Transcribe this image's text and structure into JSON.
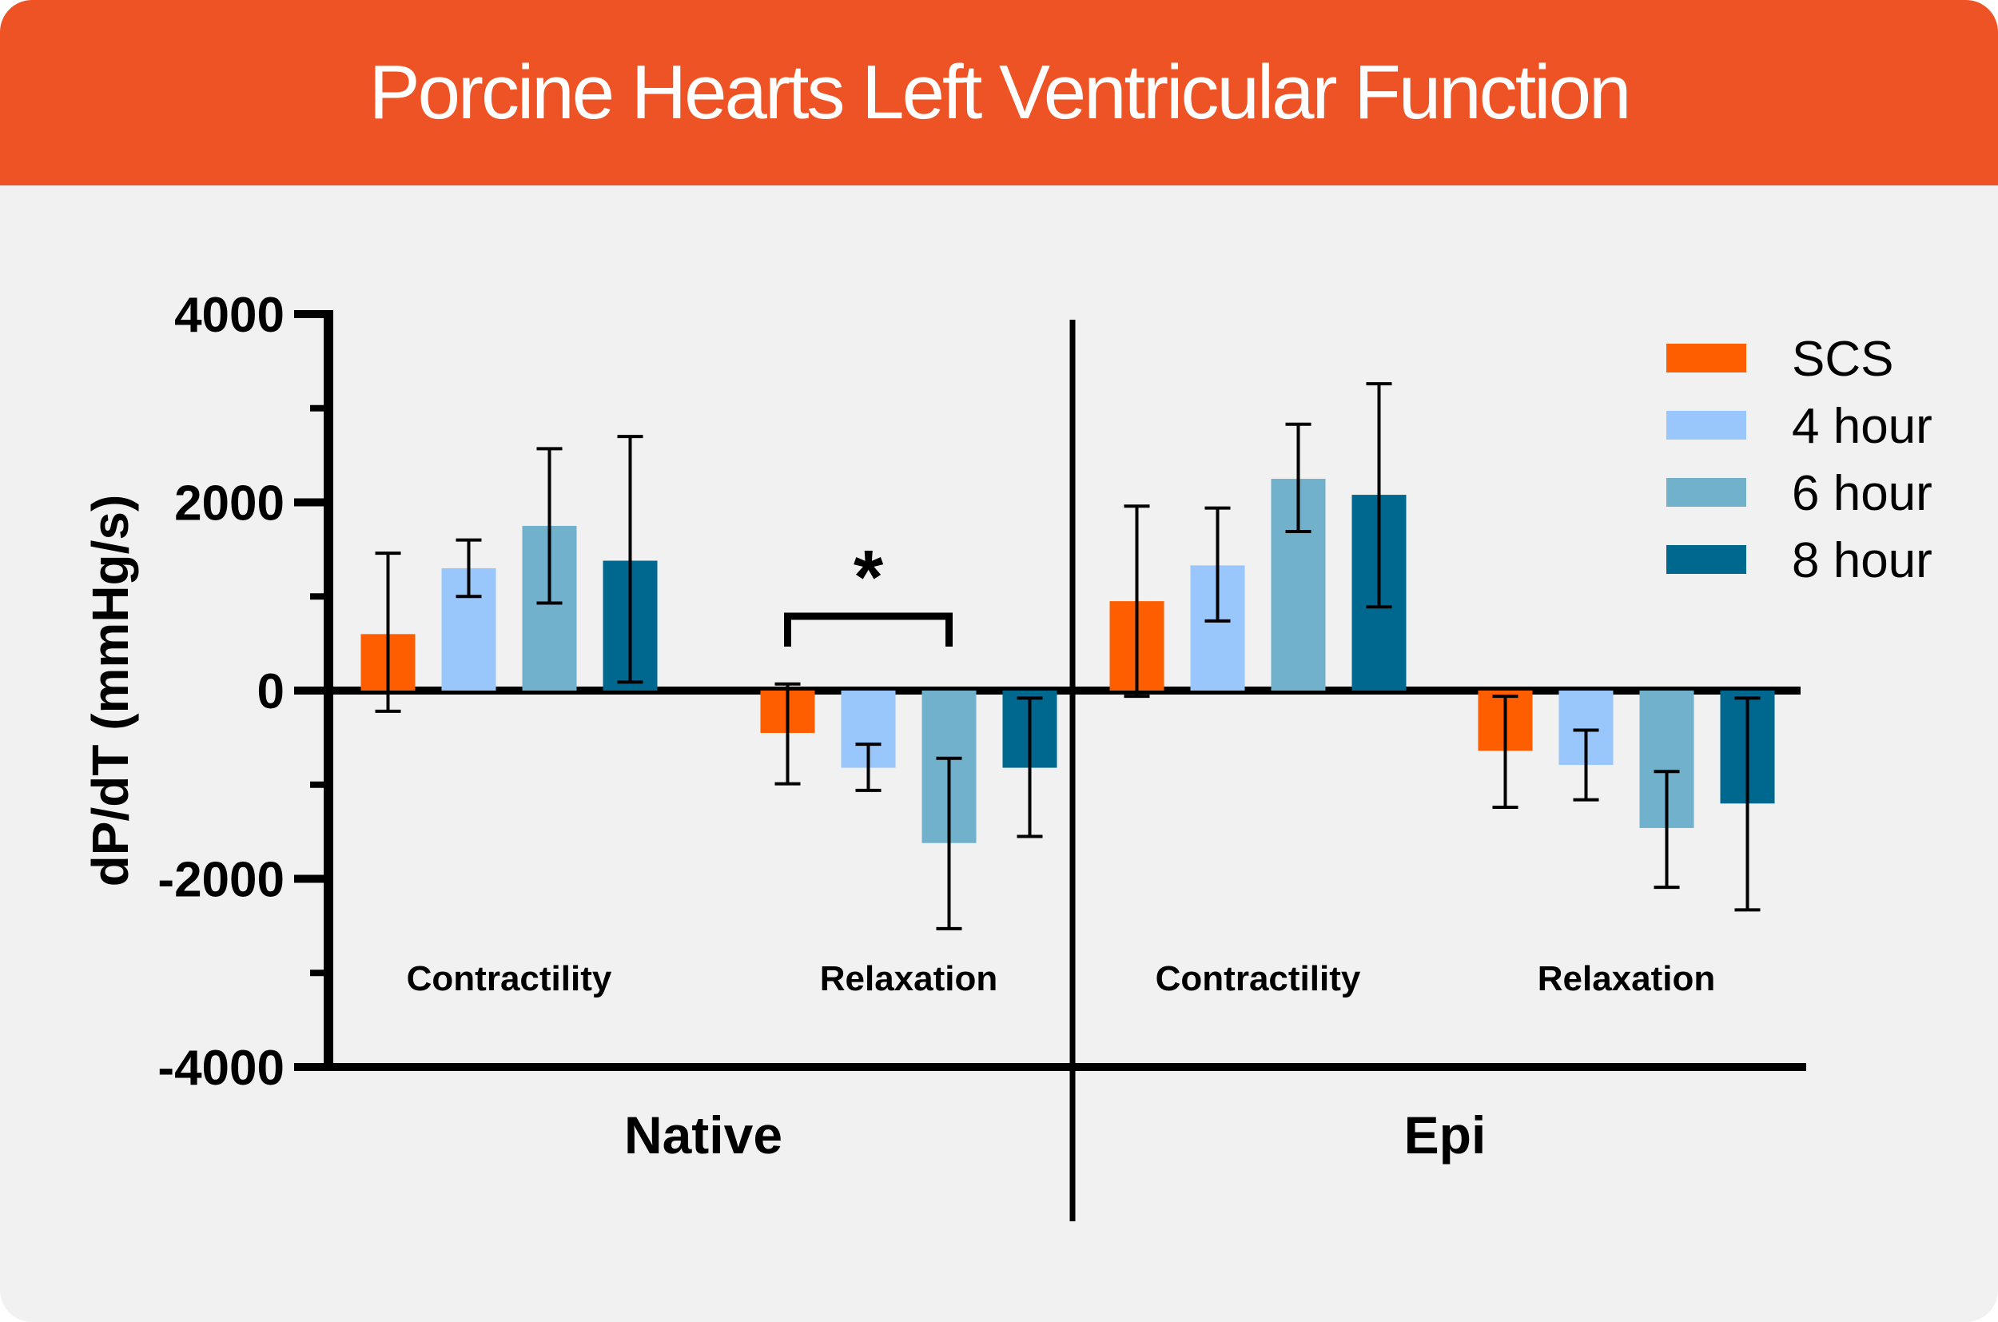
{
  "header": {
    "title": "Porcine Hearts Left Ventricular Function"
  },
  "colors": {
    "banner": "#ee5326",
    "background": "#f1f1f1",
    "axis": "#000000"
  },
  "chart_data": {
    "type": "bar",
    "ylabel": "dP/dT (mmHg/s)",
    "ylim": [
      -4000,
      4000
    ],
    "yticks": [
      {
        "value": 4000,
        "label": "4000"
      },
      {
        "value": 2000,
        "label": "2000"
      },
      {
        "value": 0,
        "label": "0"
      },
      {
        "value": -2000,
        "label": "-2000"
      },
      {
        "value": -4000,
        "label": "-4000"
      }
    ],
    "minor_ticks": [
      3000,
      1000,
      -1000,
      -3000
    ],
    "panels": [
      {
        "name": "Native",
        "groups": [
          {
            "name": "Contractility",
            "values": [
              600,
              1300,
              1750,
              1380
            ],
            "error_low": [
              -220,
              1000,
              930,
              90
            ],
            "error_high": [
              1460,
              1600,
              2570,
              2700
            ]
          },
          {
            "name": "Relaxation",
            "values": [
              -450,
              -820,
              -1620,
              -820
            ],
            "error_low": [
              -990,
              -1060,
              -2530,
              -1550
            ],
            "error_high": [
              70,
              -570,
              -720,
              -80
            ]
          }
        ]
      },
      {
        "name": "Epi",
        "groups": [
          {
            "name": "Contractility",
            "values": [
              950,
              1330,
              2250,
              2080
            ],
            "error_low": [
              -60,
              740,
              1690,
              890
            ],
            "error_high": [
              1960,
              1940,
              2830,
              3260
            ]
          },
          {
            "name": "Relaxation",
            "values": [
              -640,
              -790,
              -1460,
              -1200
            ],
            "error_low": [
              -1240,
              -1160,
              -2090,
              -2330
            ],
            "error_high": [
              -60,
              -420,
              -860,
              -80
            ]
          }
        ]
      }
    ],
    "series": [
      {
        "name": "SCS",
        "color": "#ff5e00"
      },
      {
        "name": "4 hour",
        "color": "#99c7fb"
      },
      {
        "name": "6 hour",
        "color": "#72b1cb"
      },
      {
        "name": "8 hour",
        "color": "#00678f"
      }
    ],
    "significance": {
      "label": "*",
      "panel": 0,
      "group": 1,
      "from_series": 0,
      "to_series": 2
    },
    "legend_position": "top-right"
  }
}
